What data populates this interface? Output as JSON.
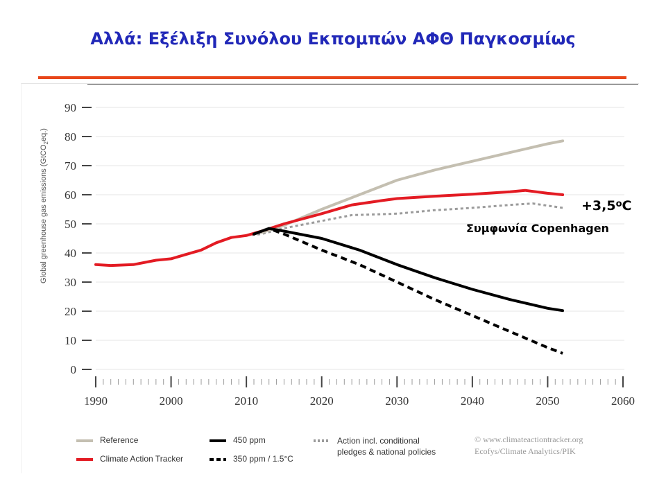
{
  "slide": {
    "title": "Αλλά: Εξέλιξη Συνόλου Εκπομπών ΑΦΘ Παγκοσμίως"
  },
  "annotations": {
    "temperature_value": "+3,5",
    "temperature_degree": "o",
    "temperature_unit": "C",
    "agreement": "Συμφωνία Copenhagen"
  },
  "credit": {
    "line1": "© www.climateactiontracker.org",
    "line2": "Ecofys/Climate Analytics/PIK"
  },
  "colors": {
    "title": "#2128b8",
    "rule": "#e8461a",
    "reference": "#c4bfb1",
    "climate_action_tracker": "#e31b23",
    "ppm450": "#000000",
    "ppm350": "#000000",
    "action_conditional": "#9b9b9b"
  },
  "chart_data": {
    "type": "line",
    "title": "",
    "xlabel": "",
    "ylabel": "Global greenhouse gas emissions (GtCO2eq.)",
    "xlim": [
      1990,
      2060
    ],
    "ylim": [
      0,
      90
    ],
    "x_ticks": [
      1990,
      2000,
      2010,
      2020,
      2030,
      2040,
      2050,
      2060
    ],
    "y_ticks": [
      0,
      10,
      20,
      30,
      40,
      50,
      60,
      70,
      80,
      90
    ],
    "grid": true,
    "legend_position": "bottom",
    "series": [
      {
        "name": "Reference",
        "style": "solid",
        "color": "#c4bfb1",
        "points": [
          [
            2012,
            47
          ],
          [
            2015,
            49.5
          ],
          [
            2020,
            55
          ],
          [
            2025,
            60
          ],
          [
            2030,
            65
          ],
          [
            2035,
            68.5
          ],
          [
            2040,
            71.5
          ],
          [
            2045,
            74.5
          ],
          [
            2050,
            77.5
          ],
          [
            2052,
            78.5
          ]
        ]
      },
      {
        "name": "Climate Action Tracker",
        "style": "solid",
        "color": "#e31b23",
        "points": [
          [
            1990,
            36
          ],
          [
            1992,
            35.7
          ],
          [
            1995,
            36
          ],
          [
            1998,
            37.5
          ],
          [
            2000,
            38
          ],
          [
            2002,
            39.5
          ],
          [
            2004,
            41
          ],
          [
            2006,
            43.5
          ],
          [
            2008,
            45.3
          ],
          [
            2010,
            46
          ],
          [
            2012,
            47.5
          ],
          [
            2015,
            50
          ],
          [
            2020,
            53.5
          ],
          [
            2024,
            56.5
          ],
          [
            2028,
            58
          ],
          [
            2030,
            58.7
          ],
          [
            2035,
            59.5
          ],
          [
            2040,
            60.2
          ],
          [
            2045,
            61
          ],
          [
            2047,
            61.5
          ],
          [
            2050,
            60.5
          ],
          [
            2052,
            60
          ]
        ]
      },
      {
        "name": "450 ppm",
        "style": "solid",
        "color": "#000000",
        "points": [
          [
            2011,
            46.5
          ],
          [
            2013,
            48.4
          ],
          [
            2015,
            47.5
          ],
          [
            2020,
            45
          ],
          [
            2025,
            41
          ],
          [
            2030,
            36
          ],
          [
            2035,
            31.5
          ],
          [
            2040,
            27.5
          ],
          [
            2045,
            24
          ],
          [
            2050,
            21
          ],
          [
            2052,
            20.2
          ]
        ]
      },
      {
        "name": "350 ppm / 1.5°C",
        "style": "dashed",
        "color": "#000000",
        "points": [
          [
            2011,
            46.5
          ],
          [
            2013,
            48.4
          ],
          [
            2015,
            46.5
          ],
          [
            2020,
            41
          ],
          [
            2025,
            36
          ],
          [
            2030,
            30
          ],
          [
            2035,
            24
          ],
          [
            2040,
            18.5
          ],
          [
            2045,
            13
          ],
          [
            2050,
            7.5
          ],
          [
            2052,
            5.5
          ]
        ]
      },
      {
        "name": "Action incl. conditional pledges & national policies",
        "style": "dotted",
        "color": "#9b9b9b",
        "points": [
          [
            2010,
            46
          ],
          [
            2012,
            46.5
          ],
          [
            2015,
            48.5
          ],
          [
            2020,
            51
          ],
          [
            2024,
            53
          ],
          [
            2030,
            53.5
          ],
          [
            2035,
            54.7
          ],
          [
            2040,
            55.5
          ],
          [
            2045,
            56.5
          ],
          [
            2048,
            57
          ],
          [
            2052,
            55.5
          ]
        ]
      }
    ]
  },
  "legend": [
    {
      "label": "Reference",
      "color_key": "reference",
      "style": "solid"
    },
    {
      "label": "Climate Action Tracker",
      "color_key": "climate_action_tracker",
      "style": "solid"
    },
    {
      "label": "450 ppm",
      "color_key": "ppm450",
      "style": "solid"
    },
    {
      "label": "350 ppm / 1.5°C",
      "color_key": "ppm350",
      "style": "dashed"
    },
    {
      "label_line1": "Action incl. conditional",
      "label_line2": "pledges & national policies",
      "color_key": "action_conditional",
      "style": "dotted"
    }
  ]
}
